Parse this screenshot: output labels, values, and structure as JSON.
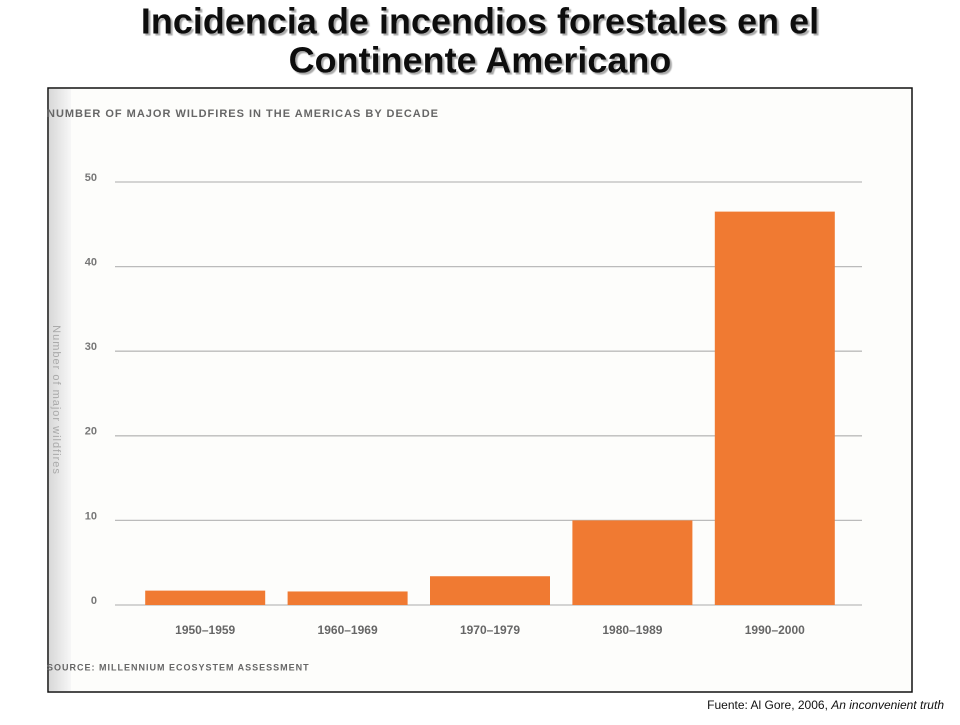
{
  "slide_title": [
    "Incidencia de incendios forestales en el",
    "Continente Americano"
  ],
  "chart_data": {
    "type": "bar",
    "title": "NUMBER OF MAJOR WILDFIRES IN THE AMERICAS BY DECADE",
    "y_label": "Number of major wildfires",
    "categories": [
      "1950–1959",
      "1960–1969",
      "1970–1979",
      "1980–1989",
      "1990–2000"
    ],
    "values": [
      1.7,
      1.6,
      3.4,
      10,
      46.5
    ],
    "color": "#f07a32",
    "ylim": [
      0,
      50
    ],
    "yticks": [
      0,
      10,
      20,
      30,
      40,
      50
    ],
    "grid": true,
    "source": "SOURCE: MILLENNIUM ECOSYSTEM ASSESSMENT"
  },
  "footer": {
    "text": "Fuente: Al Gore, 2006, ",
    "italic": "An inconvenient truth"
  }
}
